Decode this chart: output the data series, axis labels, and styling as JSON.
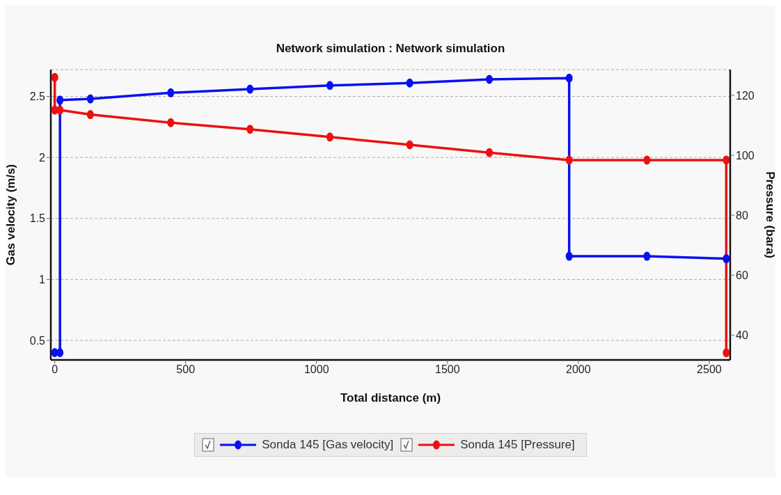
{
  "chart_data": {
    "type": "line",
    "title": "Network simulation : Network simulation",
    "xlabel": "Total distance (m)",
    "ylabel": "Gas velocity  (m/s)",
    "y2label": "Pressure  (bara)",
    "xlim": [
      -15,
      2580
    ],
    "xticks": [
      0,
      500,
      1000,
      1500,
      2000,
      2500
    ],
    "ylim": [
      0.34,
      2.72
    ],
    "yticks": [
      0.5,
      1,
      1.5,
      2,
      2.5
    ],
    "y2lim": [
      31.7,
      128.6
    ],
    "y2ticks": [
      40,
      60,
      80,
      100,
      120
    ],
    "grid": true,
    "legend": "bottom",
    "marker": "circle",
    "line_style": "solid",
    "series": [
      {
        "name": "Sonda 145 [Gas velocity]",
        "color": "#0a10f0",
        "x": [
          0,
          20,
          20,
          136,
          443,
          746,
          1051,
          1356,
          1660,
          1965,
          1965,
          2262,
          2565
        ],
        "values": [
          0.4,
          0.4,
          2.47,
          2.48,
          2.53,
          2.56,
          2.59,
          2.61,
          2.64,
          2.65,
          1.19,
          1.19,
          1.17
        ]
      },
      {
        "name": "Sonda 145 [Pressure]",
        "color": "#ec1010",
        "axis": "y2",
        "x": [
          0,
          0,
          20,
          136,
          443,
          746,
          1051,
          1356,
          1660,
          1965,
          2262,
          2565,
          2565
        ],
        "values": [
          126,
          115.1,
          115.1,
          113.6,
          110.9,
          108.7,
          106.1,
          103.5,
          100.9,
          98.4,
          98.4,
          98.4,
          34.1
        ]
      }
    ]
  }
}
